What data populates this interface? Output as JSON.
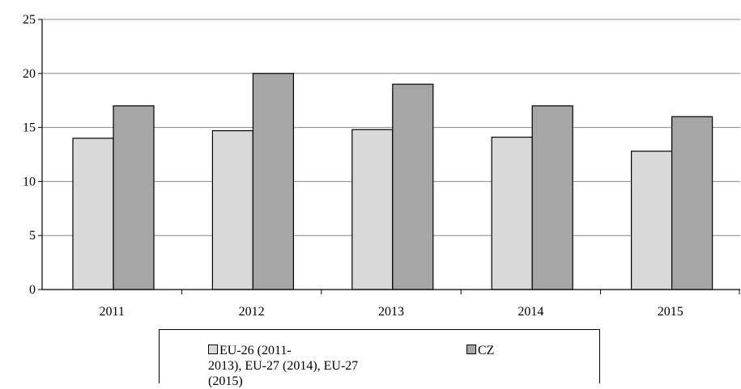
{
  "chart_data": {
    "type": "bar",
    "categories": [
      "2011",
      "2012",
      "2013",
      "2014",
      "2015"
    ],
    "series": [
      {
        "name": "EU-26 (2011-\n2013), EU-27 (2014), EU-27 (2015)",
        "values": [
          14,
          14.7,
          14.8,
          14.1,
          12.8
        ],
        "color": "#d9d9d9"
      },
      {
        "name": "CZ",
        "values": [
          17,
          20,
          19,
          17,
          16
        ],
        "color": "#a6a6a6"
      }
    ],
    "y_ticks": [
      "0",
      "5",
      "10",
      "15",
      "20",
      "25"
    ],
    "ylim": [
      0,
      25
    ],
    "grid": true,
    "legend_position": "bottom"
  }
}
